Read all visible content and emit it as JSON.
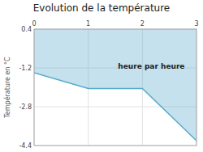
{
  "chart_data": {
    "type": "area",
    "title": "Evolution de la température",
    "ylabel": "Température en °C",
    "x": [
      0,
      1,
      2,
      3
    ],
    "values": [
      -1.4,
      -2.05,
      -2.05,
      -4.2
    ],
    "color": "#55aacc",
    "xlim": [
      0,
      3
    ],
    "ylim": [
      -4.4,
      0.4
    ],
    "xticks": [
      0,
      1,
      2,
      3
    ],
    "yticks": [
      0.4,
      -1.2,
      -2.8,
      -4.4
    ],
    "grid": true,
    "annotations": [
      {
        "text": "heure par heure",
        "x": 1.55,
        "y": -1.15
      }
    ]
  }
}
